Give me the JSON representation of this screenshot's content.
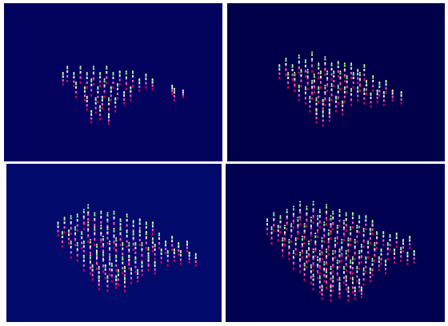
{
  "chart_data": [
    {
      "type": "spikes",
      "xlim": [
        0,
        100
      ],
      "ylim": [
        0,
        100
      ],
      "tick_labels": false,
      "grid": false,
      "x": [
        27,
        29,
        32,
        35,
        38,
        41,
        44,
        47,
        50,
        53,
        56,
        59,
        62,
        65,
        68,
        33,
        37,
        40,
        43,
        46,
        49,
        52,
        55,
        58,
        38,
        42,
        45,
        48,
        51,
        40,
        44,
        48,
        77,
        78,
        82
      ],
      "y": [
        48,
        50,
        47,
        49,
        46,
        48,
        47,
        49,
        46,
        48,
        45,
        47,
        44,
        46,
        45,
        40,
        38,
        41,
        37,
        40,
        38,
        39,
        36,
        38,
        32,
        30,
        33,
        29,
        31,
        24,
        26,
        23,
        42,
        38,
        40
      ],
      "values": [
        8,
        10,
        9,
        11,
        10,
        12,
        9,
        11,
        10,
        9,
        12,
        10,
        8,
        9,
        7,
        10,
        9,
        11,
        10,
        12,
        9,
        10,
        8,
        9,
        9,
        10,
        8,
        11,
        9,
        8,
        9,
        7,
        6,
        8,
        5
      ]
    },
    {
      "type": "spikes",
      "xlim": [
        0,
        100
      ],
      "ylim": [
        0,
        100
      ],
      "tick_labels": false,
      "grid": false,
      "x": [
        24,
        27,
        30,
        33,
        36,
        39,
        42,
        45,
        48,
        51,
        54,
        57,
        60,
        63,
        28,
        31,
        34,
        37,
        40,
        43,
        46,
        49,
        52,
        55,
        58,
        61,
        64,
        67,
        70,
        73,
        33,
        36,
        39,
        42,
        45,
        48,
        51,
        54,
        57,
        60,
        63,
        66,
        69,
        72,
        76,
        80,
        38,
        41,
        44,
        47,
        50,
        53,
        41,
        44,
        47
      ],
      "y": [
        52,
        54,
        51,
        55,
        53,
        56,
        52,
        54,
        51,
        53,
        50,
        52,
        49,
        51,
        46,
        44,
        47,
        45,
        43,
        46,
        44,
        47,
        45,
        43,
        46,
        44,
        42,
        44,
        41,
        43,
        38,
        36,
        39,
        37,
        35,
        38,
        36,
        37,
        35,
        38,
        36,
        34,
        37,
        35,
        38,
        36,
        31,
        29,
        30,
        28,
        31,
        29,
        24,
        22,
        25
      ],
      "values": [
        9,
        11,
        10,
        12,
        11,
        13,
        10,
        12,
        11,
        10,
        12,
        10,
        9,
        10,
        10,
        12,
        11,
        13,
        12,
        11,
        13,
        10,
        12,
        11,
        10,
        12,
        9,
        10,
        9,
        8,
        10,
        11,
        12,
        10,
        13,
        11,
        12,
        10,
        11,
        9,
        10,
        9,
        8,
        9,
        7,
        8,
        10,
        11,
        9,
        12,
        10,
        9,
        9,
        10,
        8
      ]
    },
    {
      "type": "spikes",
      "xlim": [
        0,
        100
      ],
      "ylim": [
        0,
        100
      ],
      "tick_labels": false,
      "grid": false,
      "x": [
        24,
        27,
        30,
        33,
        36,
        38,
        41,
        44,
        47,
        50,
        53,
        56,
        59,
        62,
        65,
        68,
        26,
        29,
        32,
        35,
        38,
        41,
        44,
        47,
        50,
        53,
        56,
        59,
        62,
        65,
        68,
        71,
        74,
        77,
        80,
        84,
        30,
        33,
        36,
        39,
        42,
        45,
        48,
        51,
        54,
        57,
        60,
        63,
        66,
        69,
        72,
        75,
        78,
        81,
        85,
        88,
        36,
        39,
        42,
        45,
        48,
        51,
        54,
        57,
        60,
        63,
        66,
        69,
        40,
        43,
        46,
        49,
        52,
        55,
        58,
        61,
        43,
        47,
        51,
        55
      ],
      "y": [
        54,
        56,
        55,
        57,
        58,
        60,
        57,
        59,
        56,
        58,
        55,
        57,
        54,
        56,
        53,
        55,
        47,
        49,
        48,
        46,
        50,
        48,
        47,
        49,
        46,
        48,
        47,
        45,
        48,
        46,
        44,
        46,
        43,
        45,
        42,
        44,
        40,
        38,
        41,
        39,
        37,
        40,
        38,
        41,
        39,
        37,
        40,
        38,
        36,
        39,
        37,
        35,
        38,
        36,
        37,
        35,
        32,
        30,
        33,
        31,
        29,
        32,
        30,
        33,
        31,
        29,
        32,
        30,
        26,
        24,
        27,
        25,
        23,
        26,
        24,
        25,
        20,
        19,
        21,
        19
      ],
      "values": [
        9,
        10,
        12,
        11,
        13,
        14,
        12,
        11,
        13,
        12,
        10,
        11,
        10,
        9,
        10,
        8,
        10,
        9,
        12,
        11,
        13,
        12,
        14,
        11,
        13,
        12,
        11,
        12,
        10,
        11,
        9,
        10,
        8,
        9,
        8,
        7,
        11,
        12,
        10,
        13,
        12,
        14,
        13,
        12,
        11,
        13,
        10,
        12,
        11,
        10,
        9,
        10,
        8,
        9,
        7,
        8,
        10,
        12,
        11,
        13,
        12,
        10,
        11,
        9,
        10,
        9,
        10,
        8,
        10,
        11,
        9,
        12,
        10,
        9,
        10,
        8,
        9,
        10,
        8,
        9
      ]
    },
    {
      "type": "spikes",
      "xlim": [
        0,
        100
      ],
      "ylim": [
        0,
        100
      ],
      "tick_labels": false,
      "grid": false,
      "x": [
        19,
        22,
        25,
        28,
        31,
        34,
        37,
        40,
        43,
        46,
        49,
        52,
        55,
        58,
        61,
        64,
        67,
        21,
        24,
        27,
        30,
        33,
        36,
        39,
        42,
        45,
        48,
        51,
        54,
        57,
        60,
        63,
        66,
        69,
        72,
        75,
        78,
        81,
        84,
        26,
        29,
        32,
        35,
        38,
        41,
        44,
        47,
        50,
        53,
        56,
        59,
        62,
        65,
        68,
        71,
        74,
        77,
        80,
        83,
        86,
        31,
        34,
        37,
        40,
        43,
        46,
        49,
        52,
        55,
        58,
        61,
        64,
        67,
        70,
        73,
        36,
        39,
        42,
        45,
        48,
        51,
        54,
        57,
        60,
        63,
        66,
        40,
        43,
        46,
        49,
        52,
        55,
        58,
        61,
        44,
        48,
        52,
        56,
        59,
        62
      ],
      "y": [
        55,
        57,
        56,
        58,
        59,
        61,
        60,
        62,
        59,
        61,
        58,
        60,
        57,
        59,
        56,
        58,
        55,
        49,
        51,
        48,
        50,
        52,
        49,
        51,
        53,
        50,
        52,
        49,
        51,
        48,
        50,
        47,
        49,
        46,
        48,
        45,
        47,
        44,
        46,
        41,
        39,
        42,
        40,
        38,
        41,
        39,
        42,
        40,
        38,
        41,
        39,
        37,
        40,
        38,
        36,
        39,
        37,
        38,
        36,
        37,
        33,
        31,
        34,
        32,
        30,
        33,
        31,
        34,
        32,
        30,
        33,
        31,
        29,
        32,
        30,
        26,
        24,
        27,
        25,
        23,
        26,
        24,
        27,
        25,
        23,
        25,
        20,
        18,
        21,
        19,
        17,
        20,
        18,
        19,
        14,
        13,
        15,
        13,
        14,
        15
      ],
      "values": [
        10,
        12,
        11,
        13,
        14,
        15,
        13,
        14,
        12,
        13,
        12,
        11,
        12,
        10,
        11,
        9,
        9,
        11,
        10,
        13,
        12,
        14,
        13,
        15,
        14,
        13,
        15,
        12,
        13,
        12,
        11,
        12,
        10,
        11,
        9,
        10,
        9,
        8,
        8,
        12,
        13,
        11,
        14,
        13,
        15,
        14,
        16,
        13,
        14,
        12,
        13,
        12,
        11,
        12,
        10,
        11,
        9,
        9,
        8,
        8,
        12,
        13,
        11,
        14,
        15,
        13,
        14,
        12,
        13,
        11,
        12,
        10,
        11,
        9,
        9,
        11,
        12,
        14,
        13,
        12,
        13,
        11,
        12,
        10,
        11,
        9,
        10,
        11,
        12,
        10,
        11,
        9,
        10,
        8,
        9,
        10,
        8,
        9,
        8,
        7
      ]
    }
  ]
}
